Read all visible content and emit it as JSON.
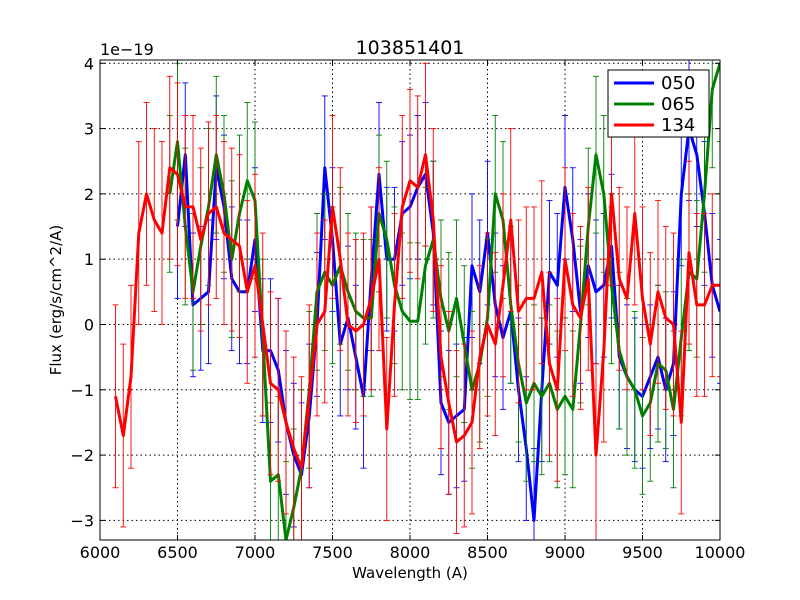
{
  "chart_data": {
    "type": "line",
    "title": "103851401",
    "xlabel": "Wavelength (A)",
    "ylabel": "Flux (erg/s/cm^2/A)",
    "offset_text": "1e−19",
    "xlim": [
      6000,
      10000
    ],
    "ylim": [
      -3.3,
      4.05
    ],
    "xticks": [
      6000,
      6500,
      7000,
      7500,
      8000,
      8500,
      9000,
      9500,
      10000
    ],
    "yticks": [
      -3,
      -2,
      -1,
      0,
      1,
      2,
      3,
      4
    ],
    "grid": true,
    "legend_position": "top-right",
    "series": [
      {
        "name": "050",
        "color": "#0000ff",
        "errorbar": 1.1,
        "x": [
          6500,
          6550,
          6600,
          6650,
          6700,
          6750,
          6800,
          6850,
          6900,
          6950,
          7000,
          7050,
          7100,
          7150,
          7200,
          7250,
          7300,
          7350,
          7400,
          7450,
          7500,
          7550,
          7600,
          7650,
          7700,
          7750,
          7800,
          7850,
          7900,
          7950,
          8000,
          8050,
          8100,
          8150,
          8200,
          8250,
          8300,
          8350,
          8400,
          8450,
          8500,
          8550,
          8600,
          8650,
          8700,
          8750,
          8800,
          8850,
          8900,
          8950,
          9000,
          9050,
          9100,
          9150,
          9200,
          9250,
          9300,
          9350,
          9400,
          9450,
          9500,
          9550,
          9600,
          9650,
          9700,
          9750,
          9800,
          9850,
          9900,
          9950,
          10000
        ],
        "y": [
          1.5,
          2.6,
          0.3,
          0.4,
          0.5,
          2.4,
          1.8,
          0.7,
          0.5,
          0.5,
          1.3,
          -0.4,
          -0.4,
          -0.7,
          -1.5,
          -2.0,
          -2.3,
          -1.4,
          0.0,
          2.4,
          1.3,
          -0.3,
          0.1,
          -0.5,
          -1.1,
          0.7,
          2.3,
          1.0,
          1.0,
          1.7,
          1.8,
          2.1,
          2.3,
          1.4,
          -1.2,
          -1.5,
          -1.4,
          -1.3,
          0.9,
          0.5,
          1.4,
          0.3,
          -0.2,
          0.2,
          -1.0,
          -1.9,
          -3.0,
          -1.0,
          0.8,
          0.6,
          2.1,
          1.3,
          0.2,
          0.9,
          0.5,
          0.6,
          1.2,
          -0.5,
          -0.8,
          -1.0,
          -1.1,
          -0.8,
          -0.5,
          -1.0,
          -0.6,
          2.0,
          3.0,
          2.6,
          1.7,
          0.6,
          0.2
        ]
      },
      {
        "name": "065",
        "color": "#008000",
        "errorbar": 1.2,
        "x": [
          6450,
          6500,
          6550,
          6600,
          6650,
          6700,
          6750,
          6800,
          6850,
          6900,
          6950,
          7000,
          7050,
          7100,
          7150,
          7200,
          7250,
          7300,
          7350,
          7400,
          7450,
          7500,
          7550,
          7600,
          7650,
          7700,
          7750,
          7800,
          7850,
          7900,
          7950,
          8000,
          8050,
          8100,
          8150,
          8200,
          8250,
          8300,
          8350,
          8400,
          8450,
          8500,
          8550,
          8600,
          8650,
          8700,
          8750,
          8800,
          8850,
          8900,
          8950,
          9000,
          9050,
          9100,
          9150,
          9200,
          9250,
          9300,
          9350,
          9400,
          9450,
          9500,
          9550,
          9600,
          9650,
          9700,
          9750,
          9800,
          9850,
          9900,
          9950,
          10000
        ],
        "y": [
          2.0,
          2.8,
          1.5,
          0.5,
          1.2,
          1.8,
          2.6,
          2.0,
          1.0,
          1.7,
          2.2,
          1.9,
          -0.2,
          -2.4,
          -2.3,
          -3.3,
          -2.8,
          -2.2,
          -1.0,
          0.5,
          0.8,
          0.6,
          0.9,
          0.5,
          0.2,
          0.1,
          0.1,
          1.7,
          1.3,
          0.6,
          0.2,
          0.05,
          0.05,
          0.9,
          1.3,
          0.4,
          -0.1,
          0.4,
          -0.3,
          -1.0,
          -0.6,
          0.1,
          2.0,
          1.6,
          0.3,
          -0.6,
          -1.2,
          -0.9,
          -1.1,
          -0.9,
          -1.3,
          -1.1,
          -1.3,
          0.0,
          1.5,
          2.6,
          2.0,
          0.6,
          -0.4,
          -0.8,
          -1.0,
          -1.4,
          -1.2,
          -0.6,
          -0.7,
          -1.3,
          -0.2,
          0.8,
          0.7,
          2.0,
          3.6,
          4.0
        ]
      },
      {
        "name": "134",
        "color": "#ff0000",
        "errorbar": 1.4,
        "x": [
          6100,
          6150,
          6200,
          6250,
          6300,
          6350,
          6400,
          6450,
          6500,
          6550,
          6600,
          6650,
          6700,
          6750,
          6800,
          6850,
          6900,
          6950,
          7000,
          7050,
          7100,
          7150,
          7200,
          7250,
          7300,
          7350,
          7400,
          7450,
          7500,
          7550,
          7600,
          7650,
          7700,
          7750,
          7800,
          7850,
          7900,
          7950,
          8000,
          8050,
          8100,
          8150,
          8200,
          8250,
          8300,
          8350,
          8400,
          8450,
          8500,
          8550,
          8600,
          8650,
          8700,
          8750,
          8800,
          8850,
          8900,
          8950,
          9000,
          9050,
          9100,
          9150,
          9200,
          9250,
          9300,
          9350,
          9400,
          9450,
          9500,
          9550,
          9600,
          9650,
          9700,
          9750,
          9800,
          9850,
          9900,
          9950,
          10000
        ],
        "y": [
          -1.1,
          -1.7,
          -0.8,
          1.4,
          2.0,
          1.6,
          1.4,
          2.4,
          2.3,
          1.8,
          1.8,
          1.3,
          1.7,
          1.8,
          1.4,
          1.3,
          1.2,
          0.5,
          0.9,
          0.0,
          -0.9,
          -1.0,
          -1.5,
          -1.9,
          -2.2,
          -1.1,
          0.0,
          0.2,
          1.8,
          1.0,
          0.0,
          -0.1,
          0.0,
          0.4,
          1.0,
          -1.6,
          0.3,
          1.8,
          2.2,
          2.1,
          2.6,
          1.6,
          -0.5,
          -1.2,
          -1.8,
          -1.7,
          -1.5,
          -0.5,
          0.0,
          -0.3,
          0.6,
          1.6,
          0.2,
          0.4,
          0.4,
          0.8,
          -0.6,
          -1.0,
          1.0,
          0.3,
          0.1,
          0.7,
          -2.0,
          -0.4,
          2.0,
          0.7,
          0.4,
          1.7,
          0.4,
          -0.3,
          0.5,
          0.1,
          0.0,
          -1.5,
          1.1,
          0.3,
          0.3,
          0.6,
          0.6
        ]
      }
    ]
  }
}
